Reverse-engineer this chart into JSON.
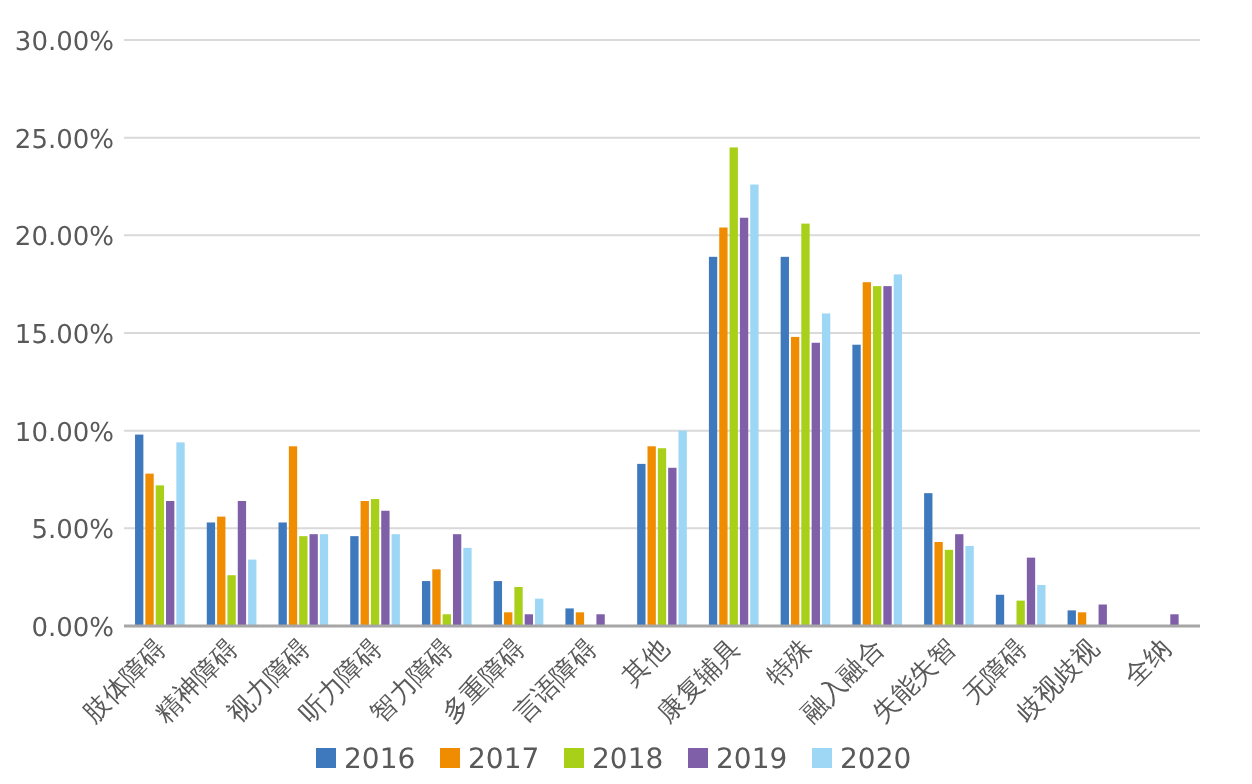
{
  "chart_data": {
    "type": "bar",
    "categories": [
      "肢体障碍",
      "精神障碍",
      "视力障碍",
      "听力障碍",
      "智力障碍",
      "多重障碍",
      "言语障碍",
      "其他",
      "康复辅具",
      "特殊",
      "融入融合",
      "失能失智",
      "无障碍",
      "歧视歧视",
      "全纳"
    ],
    "series": [
      {
        "name": "2016",
        "color": "#3e78bd",
        "values": [
          9.8,
          5.3,
          5.3,
          4.6,
          2.3,
          2.3,
          0.9,
          8.3,
          18.9,
          18.9,
          14.4,
          6.8,
          1.6,
          0.8,
          0
        ]
      },
      {
        "name": "2017",
        "color": "#f08c00",
        "values": [
          7.8,
          5.6,
          9.2,
          6.4,
          2.9,
          0.7,
          0.7,
          9.2,
          20.4,
          14.8,
          17.6,
          4.3,
          0,
          0.7,
          0
        ]
      },
      {
        "name": "2018",
        "color": "#a9d018",
        "values": [
          7.2,
          2.6,
          4.6,
          6.5,
          0.6,
          2.0,
          0,
          9.1,
          24.5,
          20.6,
          17.4,
          3.9,
          1.3,
          0,
          0
        ]
      },
      {
        "name": "2019",
        "color": "#7f5fa8",
        "values": [
          6.4,
          6.4,
          4.7,
          5.9,
          4.7,
          0.6,
          0.6,
          8.1,
          20.9,
          14.5,
          17.4,
          4.7,
          3.5,
          1.1,
          0.6
        ]
      },
      {
        "name": "2020",
        "color": "#9dd7f5",
        "values": [
          9.4,
          3.4,
          4.7,
          4.7,
          4.0,
          1.4,
          0,
          10.0,
          22.6,
          16.0,
          18.0,
          4.1,
          2.1,
          0,
          0
        ]
      }
    ],
    "ylim": [
      0,
      30
    ],
    "yticks": [
      {
        "value": 0,
        "label": "0.00%"
      },
      {
        "value": 5,
        "label": "5.00%"
      },
      {
        "value": 10,
        "label": "10.00%"
      },
      {
        "value": 15,
        "label": "15.00%"
      },
      {
        "value": 20,
        "label": "20.00%"
      },
      {
        "value": 25,
        "label": "25.00%"
      },
      {
        "value": 30,
        "label": "30.00%"
      }
    ],
    "grid": "y",
    "legend": "bottom"
  }
}
